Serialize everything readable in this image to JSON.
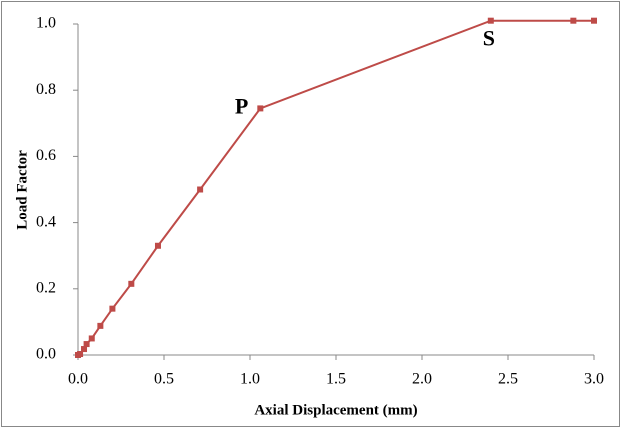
{
  "chart_data": {
    "type": "line",
    "x_label": "Axial Displacement (mm)",
    "y_label": "Load Factor",
    "series": [
      {
        "color": "#be4b48",
        "x": [
          0.0,
          0.012,
          0.035,
          0.05,
          0.08,
          0.13,
          0.2,
          0.31,
          0.465,
          0.71,
          1.06,
          2.4,
          2.88,
          3.0
        ],
        "values": [
          0.0,
          0.003,
          0.018,
          0.033,
          0.05,
          0.088,
          0.14,
          0.215,
          0.33,
          0.5,
          0.745,
          1.01,
          1.01,
          1.01
        ]
      }
    ],
    "annotations": [
      {
        "text": "P",
        "x": 1.06,
        "y": 0.745
      },
      {
        "text": "S",
        "x": 2.4,
        "y": 1.01
      }
    ],
    "xlim": [
      0,
      3.0
    ],
    "xticks": [
      {
        "value": 0,
        "label": "0.0"
      },
      {
        "value": 0.5,
        "label": "0.5"
      },
      {
        "value": 1,
        "label": "1.0"
      },
      {
        "value": 1.5,
        "label": "1.5"
      },
      {
        "value": 2,
        "label": "2.0"
      },
      {
        "value": 2.5,
        "label": "2.5"
      },
      {
        "value": 3,
        "label": "3.0"
      }
    ],
    "ylim": [
      0,
      1.0
    ],
    "yticks": [
      {
        "value": 0,
        "label": "0.0"
      },
      {
        "value": 0.2,
        "label": "0.2"
      },
      {
        "value": 0.4,
        "label": "0.4"
      },
      {
        "value": 0.6,
        "label": "0.6"
      },
      {
        "value": 0.8,
        "label": "0.8"
      },
      {
        "value": 1,
        "label": "1.0"
      }
    ],
    "grid": false
  }
}
